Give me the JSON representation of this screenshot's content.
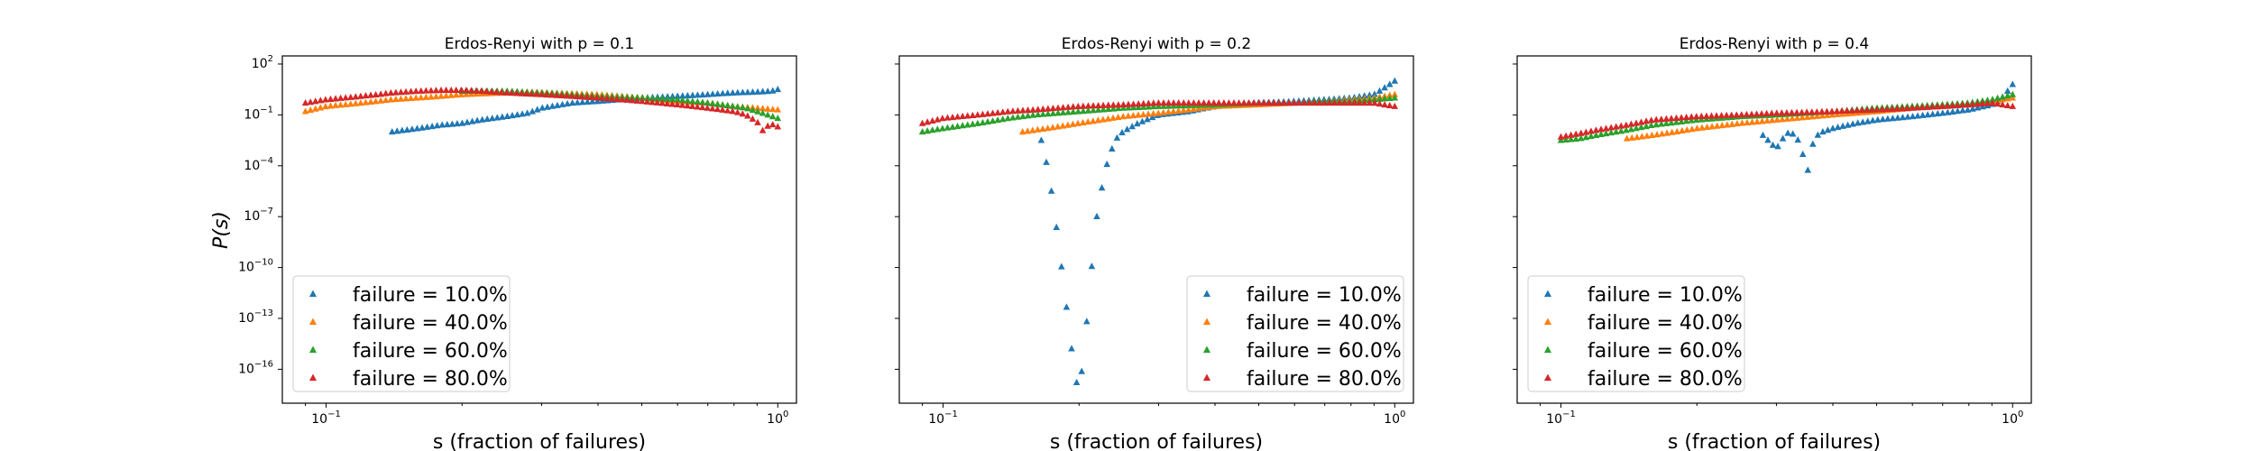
{
  "figure": {
    "ylabel": "P(s)",
    "xlabel": "s (fraction of failures)"
  },
  "colors": {
    "failure_10": "#1f77b4",
    "failure_40": "#ff7f0e",
    "failure_60": "#2ca02c",
    "failure_80": "#d62728"
  },
  "chart_data": [
    {
      "type": "scatter",
      "title": "Erdos-Renyi with p = 0.1",
      "xlabel": "s (fraction of failures)",
      "ylabel": "P(s)",
      "xscale": "log",
      "yscale": "log",
      "xlim": [
        0.08,
        1.1
      ],
      "ylim": [
        1e-18,
        300
      ],
      "yticks": [
        {
          "base": "10",
          "exp": "2"
        },
        {
          "base": "10",
          "exp": "−1"
        },
        {
          "base": "10",
          "exp": "−4"
        },
        {
          "base": "10",
          "exp": "−7"
        },
        {
          "base": "10",
          "exp": "−10"
        },
        {
          "base": "10",
          "exp": "−13"
        },
        {
          "base": "10",
          "exp": "−16"
        }
      ],
      "ytick_values": [
        2,
        -1,
        -4,
        -7,
        -10,
        -13,
        -16
      ],
      "xticks": [
        {
          "base": "10",
          "exp": "−1"
        },
        {
          "base": "10",
          "exp": "0"
        }
      ],
      "xtick_values": [
        0.1,
        1
      ],
      "legend_position": "lower-left",
      "series": [
        {
          "name": "failure = 10.0%",
          "color_key": "failure_10",
          "marker": "triangle",
          "x": [
            0.14,
            0.16,
            0.18,
            0.2,
            0.22,
            0.25,
            0.28,
            0.3,
            0.35,
            0.4,
            0.5,
            0.6,
            0.7,
            0.8,
            0.9,
            0.97,
            1.0
          ],
          "logy": [
            -2.0,
            -1.8,
            -1.6,
            -1.5,
            -1.3,
            -1.1,
            -0.9,
            -0.6,
            -0.3,
            -0.2,
            0.0,
            0.1,
            0.2,
            0.3,
            0.35,
            0.4,
            0.5
          ]
        },
        {
          "name": "failure = 40.0%",
          "color_key": "failure_40",
          "marker": "triangle",
          "x": [
            0.09,
            0.1,
            0.12,
            0.14,
            0.16,
            0.18,
            0.2,
            0.25,
            0.3,
            0.4,
            0.5,
            0.6,
            0.7,
            0.8,
            0.9,
            1.0
          ],
          "logy": [
            -0.8,
            -0.5,
            -0.3,
            -0.1,
            0.0,
            0.1,
            0.2,
            0.3,
            0.3,
            0.2,
            0.0,
            -0.2,
            -0.3,
            -0.5,
            -0.6,
            -0.7
          ]
        },
        {
          "name": "failure = 60.0%",
          "color_key": "failure_60",
          "marker": "triangle",
          "x": [
            0.2,
            0.22,
            0.25,
            0.3,
            0.35,
            0.4,
            0.5,
            0.6,
            0.7,
            0.8,
            0.85,
            0.9,
            0.95,
            1.0
          ],
          "logy": [
            0.4,
            0.4,
            0.4,
            0.3,
            0.2,
            0.1,
            0.0,
            -0.1,
            -0.3,
            -0.5,
            -0.6,
            -0.8,
            -1.0,
            -1.2
          ]
        },
        {
          "name": "failure = 80.0%",
          "color_key": "failure_80",
          "marker": "triangle",
          "x": [
            0.09,
            0.1,
            0.11,
            0.12,
            0.13,
            0.14,
            0.15,
            0.16,
            0.18,
            0.2,
            0.22,
            0.25,
            0.3,
            0.35,
            0.4,
            0.45,
            0.5,
            0.6,
            0.7,
            0.8,
            0.85,
            0.9,
            0.93,
            0.96,
            1.0
          ],
          "logy": [
            -0.3,
            -0.1,
            0.0,
            0.1,
            0.2,
            0.3,
            0.35,
            0.4,
            0.45,
            0.45,
            0.4,
            0.3,
            0.2,
            0.1,
            0.0,
            -0.1,
            -0.2,
            -0.4,
            -0.6,
            -0.8,
            -1.0,
            -1.4,
            -2.0,
            -1.5,
            -1.7
          ]
        }
      ]
    },
    {
      "type": "scatter",
      "title": "Erdos-Renyi with p = 0.2",
      "xlabel": "s (fraction of failures)",
      "ylabel": "",
      "xscale": "log",
      "yscale": "log",
      "xlim": [
        0.08,
        1.1
      ],
      "ylim": [
        1e-18,
        300
      ],
      "ytick_values": [
        2,
        -1,
        -4,
        -7,
        -10,
        -13,
        -16
      ],
      "xticks": [
        {
          "base": "10",
          "exp": "−1"
        },
        {
          "base": "10",
          "exp": "0"
        }
      ],
      "xtick_values": [
        0.1,
        1
      ],
      "legend_position": "lower-right",
      "series": [
        {
          "name": "failure = 10.0%",
          "color_key": "failure_10",
          "marker": "triangle",
          "x": [
            0.165,
            0.17,
            0.175,
            0.18,
            0.185,
            0.19,
            0.195,
            0.2,
            0.205,
            0.21,
            0.215,
            0.22,
            0.23,
            0.24,
            0.25,
            0.27,
            0.3,
            0.35,
            0.4,
            0.5,
            0.6,
            0.7,
            0.8,
            0.9,
            0.95,
            1.0
          ],
          "logy": [
            -2.5,
            -4.0,
            -6.0,
            -8.5,
            -11.0,
            -13.5,
            -16.0,
            -17.5,
            -15.0,
            -12.0,
            -9.0,
            -6.5,
            -4.0,
            -2.5,
            -2.0,
            -1.5,
            -1.0,
            -0.8,
            -0.5,
            -0.3,
            -0.2,
            -0.1,
            0.0,
            0.2,
            0.6,
            1.0
          ]
        },
        {
          "name": "failure = 40.0%",
          "color_key": "failure_40",
          "marker": "triangle",
          "x": [
            0.15,
            0.17,
            0.2,
            0.25,
            0.3,
            0.35,
            0.4,
            0.5,
            0.6,
            0.7,
            0.8,
            0.9,
            1.0
          ],
          "logy": [
            -2.0,
            -1.8,
            -1.5,
            -1.1,
            -0.9,
            -0.7,
            -0.5,
            -0.4,
            -0.3,
            -0.2,
            -0.1,
            0.0,
            0.2
          ]
        },
        {
          "name": "failure = 60.0%",
          "color_key": "failure_60",
          "marker": "triangle",
          "x": [
            0.09,
            0.1,
            0.12,
            0.14,
            0.16,
            0.2,
            0.25,
            0.3,
            0.4,
            0.5,
            0.6,
            0.7,
            0.8,
            0.9,
            1.0
          ],
          "logy": [
            -2.0,
            -1.8,
            -1.5,
            -1.2,
            -1.0,
            -0.8,
            -0.6,
            -0.5,
            -0.4,
            -0.3,
            -0.3,
            -0.2,
            -0.2,
            -0.1,
            0.0
          ]
        },
        {
          "name": "failure = 80.0%",
          "color_key": "failure_80",
          "marker": "triangle",
          "x": [
            0.09,
            0.1,
            0.12,
            0.14,
            0.16,
            0.2,
            0.25,
            0.3,
            0.4,
            0.5,
            0.6,
            0.7,
            0.8,
            0.9,
            1.0
          ],
          "logy": [
            -1.5,
            -1.2,
            -1.0,
            -0.8,
            -0.7,
            -0.5,
            -0.4,
            -0.3,
            -0.3,
            -0.3,
            -0.3,
            -0.3,
            -0.3,
            -0.3,
            -0.5
          ]
        }
      ]
    },
    {
      "type": "scatter",
      "title": "Erdos-Renyi with p = 0.4",
      "xlabel": "s (fraction of failures)",
      "ylabel": "",
      "xscale": "log",
      "yscale": "log",
      "xlim": [
        0.08,
        1.1
      ],
      "ylim": [
        1e-18,
        300
      ],
      "ytick_values": [
        2,
        -1,
        -4,
        -7,
        -10,
        -13,
        -16
      ],
      "xticks": [
        {
          "base": "10",
          "exp": "−1"
        },
        {
          "base": "10",
          "exp": "0"
        }
      ],
      "xtick_values": [
        0.1,
        1
      ],
      "legend_position": "lower-left",
      "series": [
        {
          "name": "failure = 10.0%",
          "color_key": "failure_10",
          "marker": "triangle",
          "x": [
            0.28,
            0.29,
            0.3,
            0.31,
            0.32,
            0.33,
            0.34,
            0.345,
            0.35,
            0.355,
            0.36,
            0.37,
            0.38,
            0.4,
            0.45,
            0.5,
            0.6,
            0.7,
            0.8,
            0.9,
            0.95,
            1.0
          ],
          "logy": [
            -2.2,
            -2.6,
            -3.0,
            -2.4,
            -2.0,
            -2.2,
            -2.8,
            -3.6,
            -4.6,
            -3.8,
            -2.8,
            -2.2,
            -2.0,
            -1.8,
            -1.5,
            -1.3,
            -1.1,
            -0.9,
            -0.7,
            -0.4,
            0.0,
            0.8
          ]
        },
        {
          "name": "failure = 40.0%",
          "color_key": "failure_40",
          "marker": "triangle",
          "x": [
            0.14,
            0.16,
            0.18,
            0.2,
            0.25,
            0.3,
            0.4,
            0.5,
            0.6,
            0.7,
            0.8,
            0.9,
            1.0
          ],
          "logy": [
            -2.4,
            -2.2,
            -2.0,
            -1.8,
            -1.5,
            -1.3,
            -1.0,
            -0.8,
            -0.6,
            -0.5,
            -0.4,
            -0.2,
            0.0
          ]
        },
        {
          "name": "failure = 60.0%",
          "color_key": "failure_60",
          "marker": "triangle",
          "x": [
            0.1,
            0.11,
            0.12,
            0.14,
            0.16,
            0.2,
            0.25,
            0.3,
            0.4,
            0.5,
            0.6,
            0.7,
            0.8,
            0.9,
            1.0
          ],
          "logy": [
            -2.5,
            -2.4,
            -2.2,
            -1.9,
            -1.6,
            -1.3,
            -1.1,
            -1.0,
            -0.8,
            -0.6,
            -0.5,
            -0.4,
            -0.3,
            -0.1,
            0.2
          ]
        },
        {
          "name": "failure = 80.0%",
          "color_key": "failure_80",
          "marker": "triangle",
          "x": [
            0.1,
            0.11,
            0.12,
            0.14,
            0.16,
            0.2,
            0.25,
            0.3,
            0.4,
            0.5,
            0.6,
            0.7,
            0.8,
            0.9,
            1.0
          ],
          "logy": [
            -2.3,
            -2.1,
            -1.9,
            -1.6,
            -1.3,
            -1.1,
            -1.0,
            -0.9,
            -0.8,
            -0.7,
            -0.6,
            -0.5,
            -0.4,
            -0.3,
            -0.5
          ]
        }
      ]
    }
  ]
}
